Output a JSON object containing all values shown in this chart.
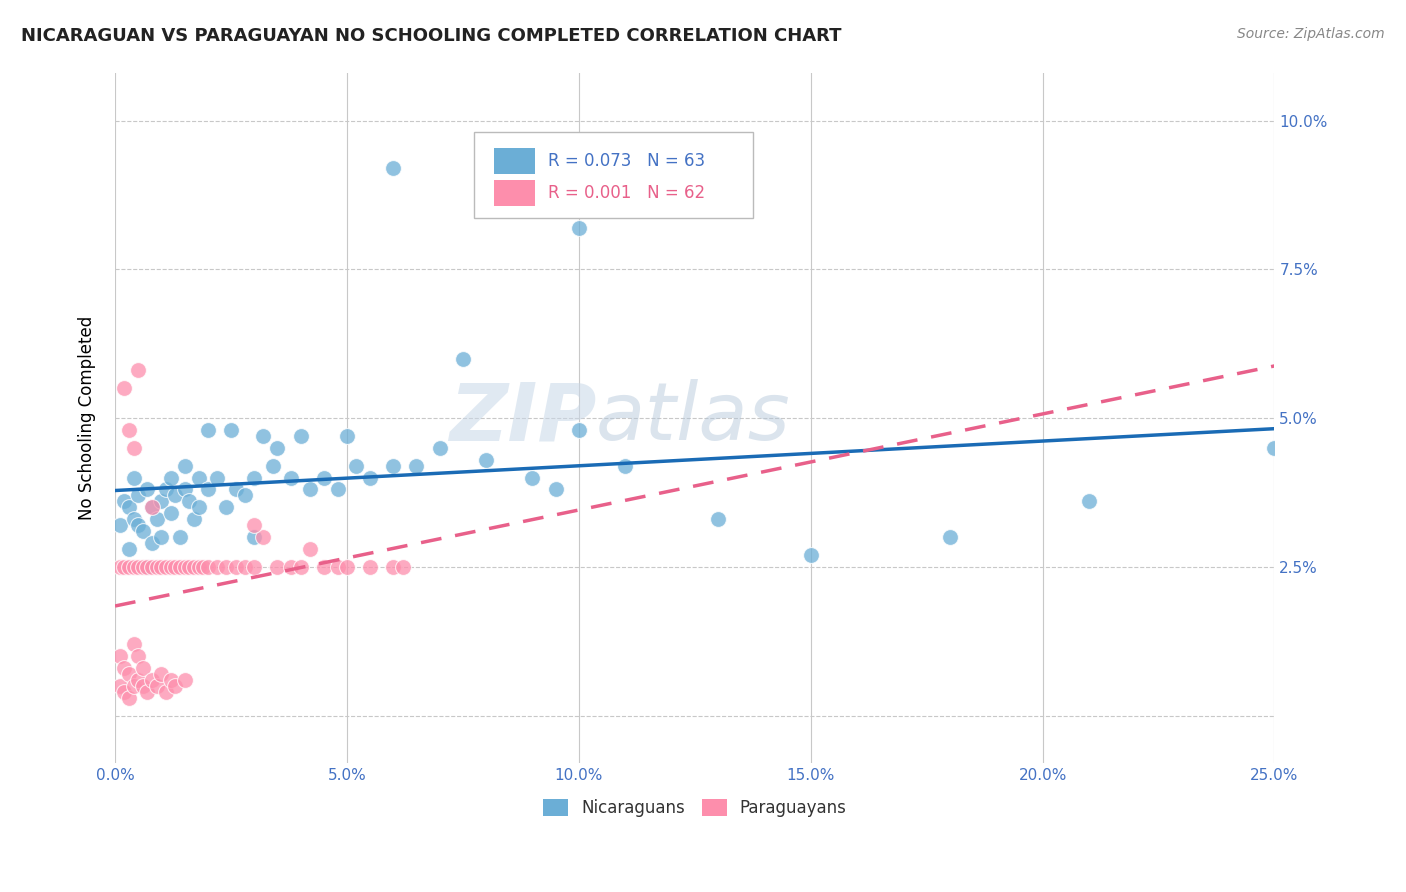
{
  "title": "NICARAGUAN VS PARAGUAYAN NO SCHOOLING COMPLETED CORRELATION CHART",
  "source": "Source: ZipAtlas.com",
  "ylabel": "No Schooling Completed",
  "xlim": [
    0.0,
    0.25
  ],
  "ylim": [
    -0.008,
    0.108
  ],
  "legend_blue_r": "R = 0.073",
  "legend_blue_n": "N = 63",
  "legend_pink_r": "R = 0.001",
  "legend_pink_n": "N = 62",
  "blue_color": "#6baed6",
  "pink_color": "#fd8eac",
  "trend_blue_color": "#1a6bb5",
  "trend_pink_color": "#e8608a",
  "watermark_zip": "ZIP",
  "watermark_atlas": "atlas",
  "blue_x": [
    0.001,
    0.002,
    0.003,
    0.003,
    0.004,
    0.004,
    0.005,
    0.005,
    0.006,
    0.007,
    0.007,
    0.008,
    0.008,
    0.009,
    0.01,
    0.01,
    0.011,
    0.012,
    0.012,
    0.013,
    0.014,
    0.015,
    0.015,
    0.016,
    0.017,
    0.018,
    0.018,
    0.02,
    0.02,
    0.022,
    0.024,
    0.025,
    0.026,
    0.028,
    0.03,
    0.03,
    0.032,
    0.034,
    0.035,
    0.038,
    0.04,
    0.042,
    0.045,
    0.048,
    0.05,
    0.052,
    0.055,
    0.06,
    0.065,
    0.07,
    0.075,
    0.08,
    0.09,
    0.095,
    0.1,
    0.11,
    0.13,
    0.15,
    0.18,
    0.21,
    0.06,
    0.1,
    0.25
  ],
  "blue_y": [
    0.032,
    0.036,
    0.035,
    0.028,
    0.033,
    0.04,
    0.032,
    0.037,
    0.031,
    0.025,
    0.038,
    0.029,
    0.035,
    0.033,
    0.036,
    0.03,
    0.038,
    0.034,
    0.04,
    0.037,
    0.03,
    0.038,
    0.042,
    0.036,
    0.033,
    0.035,
    0.04,
    0.048,
    0.038,
    0.04,
    0.035,
    0.048,
    0.038,
    0.037,
    0.04,
    0.03,
    0.047,
    0.042,
    0.045,
    0.04,
    0.047,
    0.038,
    0.04,
    0.038,
    0.047,
    0.042,
    0.04,
    0.042,
    0.042,
    0.045,
    0.06,
    0.043,
    0.04,
    0.038,
    0.048,
    0.042,
    0.033,
    0.027,
    0.03,
    0.036,
    0.092,
    0.082,
    0.045
  ],
  "pink_x": [
    0.001,
    0.001,
    0.001,
    0.002,
    0.002,
    0.002,
    0.003,
    0.003,
    0.003,
    0.004,
    0.004,
    0.004,
    0.005,
    0.005,
    0.005,
    0.006,
    0.006,
    0.006,
    0.007,
    0.007,
    0.008,
    0.008,
    0.009,
    0.009,
    0.01,
    0.01,
    0.011,
    0.011,
    0.012,
    0.012,
    0.013,
    0.013,
    0.014,
    0.015,
    0.015,
    0.016,
    0.017,
    0.018,
    0.019,
    0.02,
    0.022,
    0.024,
    0.026,
    0.028,
    0.03,
    0.032,
    0.035,
    0.038,
    0.04,
    0.042,
    0.045,
    0.048,
    0.05,
    0.055,
    0.06,
    0.062,
    0.002,
    0.003,
    0.004,
    0.005,
    0.008,
    0.03
  ],
  "pink_y": [
    0.005,
    0.01,
    0.025,
    0.004,
    0.008,
    0.025,
    0.003,
    0.007,
    0.025,
    0.005,
    0.012,
    0.025,
    0.006,
    0.01,
    0.025,
    0.005,
    0.008,
    0.025,
    0.004,
    0.025,
    0.006,
    0.025,
    0.005,
    0.025,
    0.007,
    0.025,
    0.004,
    0.025,
    0.006,
    0.025,
    0.005,
    0.025,
    0.025,
    0.006,
    0.025,
    0.025,
    0.025,
    0.025,
    0.025,
    0.025,
    0.025,
    0.025,
    0.025,
    0.025,
    0.025,
    0.03,
    0.025,
    0.025,
    0.025,
    0.028,
    0.025,
    0.025,
    0.025,
    0.025,
    0.025,
    0.025,
    0.055,
    0.048,
    0.045,
    0.058,
    0.035,
    0.032
  ]
}
